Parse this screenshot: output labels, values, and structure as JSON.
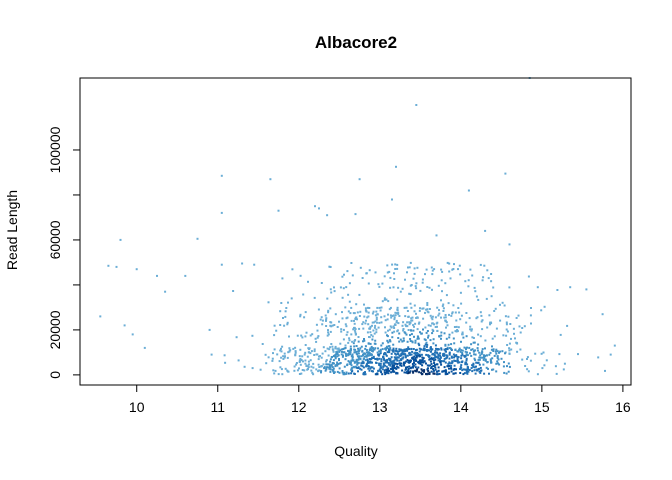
{
  "chart_data": {
    "type": "scatter",
    "title": "Albacore2",
    "xlabel": "Quality",
    "ylabel": "Read Length",
    "xlim": [
      9.3,
      16.1
    ],
    "ylim": [
      -4500,
      132000
    ],
    "xticks": [
      10,
      11,
      12,
      13,
      14,
      15,
      16
    ],
    "yticks": [
      0,
      20000,
      40000,
      60000,
      80000,
      100000
    ],
    "xtick_labels": [
      "10",
      "11",
      "12",
      "13",
      "14",
      "15",
      "16"
    ],
    "ytick_labels": [
      "0",
      "20000",
      "60000",
      "100000"
    ],
    "ytick_label_values": [
      0,
      20000,
      60000,
      100000
    ],
    "grid": false,
    "legend": "none",
    "color_scale": [
      "#6baed6",
      "#4292c6",
      "#2171b5",
      "#08519c",
      "#08306b"
    ],
    "sample_points": [
      [
        9.55,
        26000
      ],
      [
        9.65,
        48500
      ],
      [
        9.75,
        48000
      ],
      [
        9.8,
        60000
      ],
      [
        9.85,
        22000
      ],
      [
        9.95,
        18000
      ],
      [
        10.0,
        47000
      ],
      [
        10.1,
        12000
      ],
      [
        10.25,
        44000
      ],
      [
        10.35,
        37000
      ],
      [
        10.6,
        44000
      ],
      [
        10.75,
        60500
      ],
      [
        10.9,
        20000
      ],
      [
        11.05,
        88500
      ],
      [
        11.05,
        72000
      ],
      [
        11.05,
        49000
      ],
      [
        11.3,
        49500
      ],
      [
        11.45,
        49000
      ],
      [
        11.65,
        87000
      ],
      [
        11.75,
        73000
      ],
      [
        12.2,
        75000
      ],
      [
        12.25,
        74000
      ],
      [
        12.35,
        71000
      ],
      [
        12.7,
        71500
      ],
      [
        12.75,
        87000
      ],
      [
        13.15,
        78000
      ],
      [
        13.2,
        92500
      ],
      [
        13.45,
        120000
      ],
      [
        13.7,
        62000
      ],
      [
        14.1,
        82000
      ],
      [
        14.3,
        64000
      ],
      [
        14.55,
        89500
      ],
      [
        14.6,
        58000
      ],
      [
        14.85,
        132000
      ],
      [
        14.95,
        39000
      ],
      [
        15.35,
        39000
      ],
      [
        15.55,
        38000
      ],
      [
        15.75,
        27000
      ],
      [
        15.9,
        13000
      ],
      [
        15.85,
        9000
      ]
    ]
  }
}
